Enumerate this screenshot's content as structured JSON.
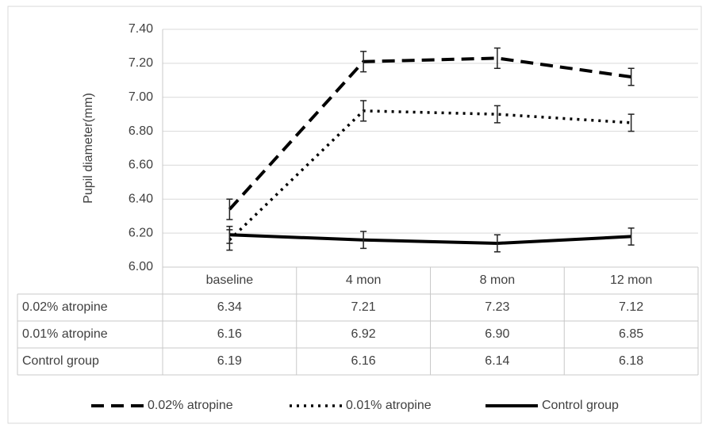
{
  "chart_data": {
    "type": "line",
    "y_label": "Pupil diameter(mm)",
    "categories": [
      "baseline",
      "4 mon",
      "8 mon",
      "12 mon"
    ],
    "series": [
      {
        "name": "0.02% atropine",
        "color": "#000000",
        "dash": "dashed",
        "values": [
          6.34,
          7.21,
          7.23,
          7.12
        ],
        "value_labels": [
          "6.34",
          "7.21",
          "7.23",
          "7.12"
        ],
        "errors": [
          0.06,
          0.06,
          0.06,
          0.05
        ]
      },
      {
        "name": "0.01% atropine",
        "color": "#000000",
        "dash": "dotted",
        "values": [
          6.16,
          6.92,
          6.9,
          6.85
        ],
        "value_labels": [
          "6.16",
          "6.92",
          "6.90",
          "6.85"
        ],
        "errors": [
          0.06,
          0.06,
          0.05,
          0.05
        ]
      },
      {
        "name": "Control group",
        "color": "#000000",
        "dash": "solid",
        "values": [
          6.19,
          6.16,
          6.14,
          6.18
        ],
        "value_labels": [
          "6.19",
          "6.16",
          "6.14",
          "6.18"
        ],
        "errors": [
          0.05,
          0.05,
          0.05,
          0.05
        ]
      }
    ],
    "ylim": [
      6.0,
      7.4
    ],
    "yticks": [
      {
        "value": 6.0,
        "label": "6.00"
      },
      {
        "value": 6.2,
        "label": "6.20"
      },
      {
        "value": 6.4,
        "label": "6.40"
      },
      {
        "value": 6.6,
        "label": "6.60"
      },
      {
        "value": 6.8,
        "label": "6.80"
      },
      {
        "value": 7.0,
        "label": "7.00"
      },
      {
        "value": 7.2,
        "label": "7.20"
      },
      {
        "value": 7.4,
        "label": "7.40"
      }
    ],
    "grid": true
  }
}
